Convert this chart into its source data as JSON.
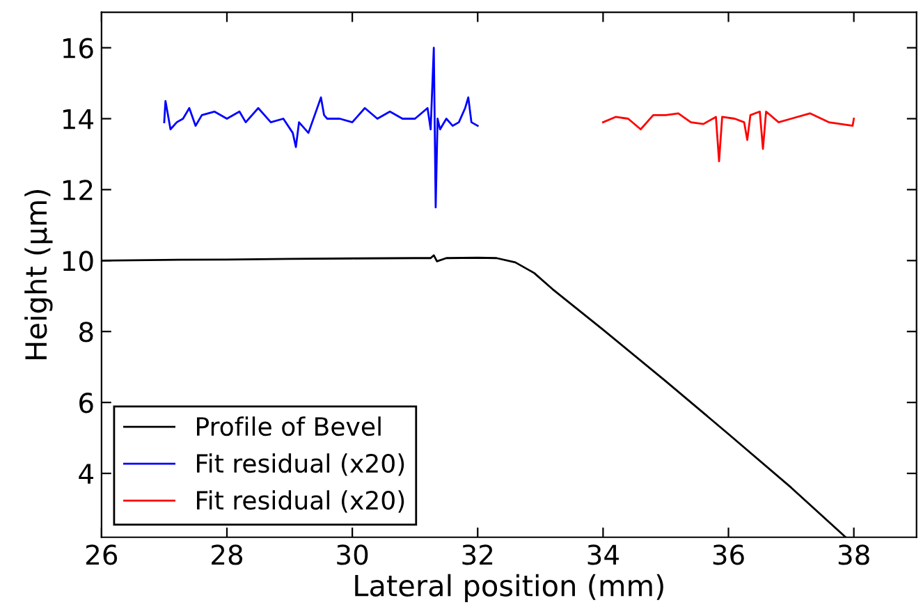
{
  "chart_data": {
    "type": "line",
    "xlabel": "Lateral position (mm)",
    "ylabel": "Height (µm)",
    "xlim": [
      26,
      39
    ],
    "ylim": [
      2.2,
      17
    ],
    "xticks": [
      26,
      28,
      30,
      32,
      34,
      36,
      38
    ],
    "yticks": [
      4,
      6,
      8,
      10,
      12,
      14,
      16
    ],
    "grid": false,
    "legend": "bottom left",
    "line_style": "solid",
    "marker": "none",
    "series": [
      {
        "name": "Profile of Bevel",
        "color": "#000000",
        "x": [
          26,
          27,
          28,
          29,
          30,
          31,
          31.25,
          31.3,
          31.35,
          31.5,
          32,
          32.3,
          32.6,
          32.9,
          33.19,
          34,
          35,
          36,
          37,
          37.87
        ],
        "values": [
          10.0,
          10.02,
          10.03,
          10.05,
          10.06,
          10.07,
          10.07,
          10.15,
          9.98,
          10.07,
          10.08,
          10.07,
          9.95,
          9.65,
          9.2,
          8.05,
          6.6,
          5.11,
          3.6,
          2.2
        ]
      },
      {
        "name": "Fit residual (x20)",
        "color": "#0000ff",
        "x": [
          27.0,
          27.02,
          27.1,
          27.2,
          27.3,
          27.4,
          27.5,
          27.6,
          27.8,
          28.0,
          28.2,
          28.3,
          28.5,
          28.7,
          28.9,
          29.05,
          29.1,
          29.15,
          29.3,
          29.5,
          29.55,
          29.6,
          29.8,
          30.0,
          30.2,
          30.4,
          30.6,
          30.8,
          31.0,
          31.2,
          31.25,
          31.3,
          31.33,
          31.36,
          31.4,
          31.5,
          31.6,
          31.7,
          31.8,
          31.85,
          31.9,
          32.0
        ],
        "values": [
          13.9,
          14.5,
          13.7,
          13.9,
          14.0,
          14.3,
          13.8,
          14.1,
          14.2,
          14.0,
          14.2,
          13.9,
          14.3,
          13.9,
          14.0,
          13.6,
          13.2,
          13.9,
          13.6,
          14.6,
          14.1,
          14.0,
          14.0,
          13.9,
          14.3,
          14.0,
          14.2,
          14.0,
          14.0,
          14.3,
          13.7,
          16.0,
          11.5,
          14.0,
          13.7,
          14.0,
          13.8,
          13.9,
          14.3,
          14.6,
          13.9,
          13.8
        ]
      },
      {
        "name": "Fit residual (x20)",
        "color": "#ff0000",
        "x": [
          34.0,
          34.2,
          34.4,
          34.6,
          34.8,
          35.0,
          35.2,
          35.4,
          35.6,
          35.8,
          35.85,
          35.9,
          36.1,
          36.25,
          36.3,
          36.35,
          36.5,
          36.55,
          36.6,
          36.8,
          37.0,
          37.3,
          37.6,
          37.98,
          38.0
        ],
        "values": [
          13.9,
          14.05,
          14.0,
          13.7,
          14.1,
          14.1,
          14.15,
          13.9,
          13.85,
          14.05,
          12.8,
          14.05,
          14.0,
          13.9,
          13.4,
          14.1,
          14.2,
          13.15,
          14.2,
          13.9,
          14.0,
          14.15,
          13.9,
          13.8,
          14.0
        ]
      }
    ]
  }
}
